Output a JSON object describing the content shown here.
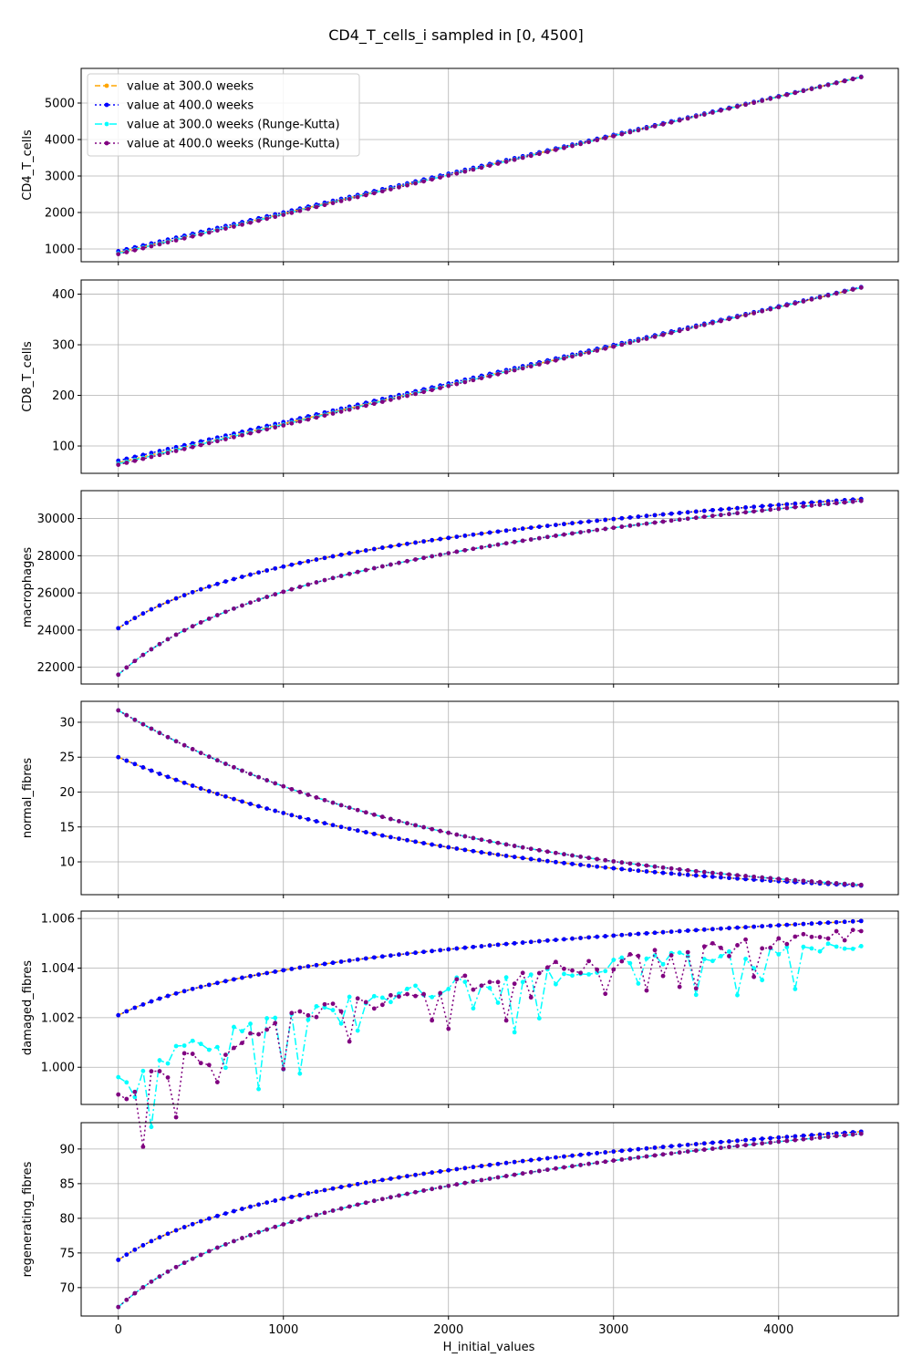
{
  "chart_data": {
    "type": "line",
    "title": "CD4_T_cells_i sampled in [0, 4500]",
    "xlabel": "H_initial_values",
    "xlim": [
      -225,
      4725
    ],
    "xticks": [
      0,
      1000,
      2000,
      3000,
      4000
    ],
    "x_range": [
      0,
      4500
    ],
    "n_points": 91,
    "grid": true,
    "legend": {
      "placement": "upper-left",
      "entries": [
        "value at 300.0 weeks",
        "value at 400.0 weeks",
        "value at 300.0 weeks (Runge-Kutta)",
        "value at 400.0 weeks (Runge-Kutta)"
      ]
    },
    "series_styles": [
      {
        "label": "value at 300.0 weeks",
        "color": "#ffa500",
        "dash": "6,3"
      },
      {
        "label": "value at 400.0 weeks",
        "color": "#0000ff",
        "dash": "2,3"
      },
      {
        "label": "value at 300.0 weeks (Runge-Kutta)",
        "color": "#00ffff",
        "dash": "8,3,2,3"
      },
      {
        "label": "value at 400.0 weeks (Runge-Kutta)",
        "color": "#800080",
        "dash": "2,3"
      }
    ],
    "panels": [
      {
        "ylabel": "CD4_T_cells",
        "ylim": [
          650,
          5950
        ],
        "yticks": [
          1000,
          2000,
          3000,
          4000,
          5000
        ],
        "series": [
          {
            "name": "value at 300.0 weeks",
            "start": 900,
            "end": 5720,
            "shape": "linear"
          },
          {
            "name": "value at 400.0 weeks",
            "start": 940,
            "end": 5720,
            "shape": "linear"
          },
          {
            "name": "value at 300.0 weeks (Runge-Kutta)",
            "start": 880,
            "end": 5710,
            "shape": "linear"
          },
          {
            "name": "value at 400.0 weeks (Runge-Kutta)",
            "start": 860,
            "end": 5710,
            "shape": "linear"
          }
        ]
      },
      {
        "ylabel": "CD8_T_cells",
        "ylim": [
          46,
          428
        ],
        "yticks": [
          100,
          200,
          300,
          400
        ],
        "series": [
          {
            "name": "value at 300.0 weeks",
            "start": 67,
            "end": 413,
            "shape": "linear"
          },
          {
            "name": "value at 400.0 weeks",
            "start": 71,
            "end": 414,
            "shape": "linear"
          },
          {
            "name": "value at 300.0 weeks (Runge-Kutta)",
            "start": 65,
            "end": 413,
            "shape": "linear"
          },
          {
            "name": "value at 400.0 weeks (Runge-Kutta)",
            "start": 63,
            "end": 413,
            "shape": "linear"
          }
        ]
      },
      {
        "ylabel": "macrophages",
        "ylim": [
          21100,
          31500
        ],
        "yticks": [
          22000,
          24000,
          26000,
          28000,
          30000
        ],
        "series": [
          {
            "name": "value at 300.0 weeks",
            "start": 24100,
            "end": 31050,
            "shape": "log"
          },
          {
            "name": "value at 400.0 weeks",
            "start": 24100,
            "end": 31050,
            "shape": "log"
          },
          {
            "name": "value at 300.0 weeks (Runge-Kutta)",
            "start": 21600,
            "end": 30950,
            "shape": "log"
          },
          {
            "name": "value at 400.0 weeks (Runge-Kutta)",
            "start": 21600,
            "end": 30950,
            "shape": "log"
          }
        ]
      },
      {
        "ylabel": "normal_fibres",
        "ylim": [
          5.3,
          33.0
        ],
        "yticks": [
          10,
          15,
          20,
          25,
          30
        ],
        "series": [
          {
            "name": "value at 300.0 weeks",
            "start": 25.0,
            "end": 6.6,
            "shape": "decay"
          },
          {
            "name": "value at 400.0 weeks",
            "start": 25.0,
            "end": 6.6,
            "shape": "decay"
          },
          {
            "name": "value at 300.0 weeks (Runge-Kutta)",
            "start": 31.7,
            "end": 6.7,
            "shape": "decay"
          },
          {
            "name": "value at 400.0 weeks (Runge-Kutta)",
            "start": 31.7,
            "end": 6.7,
            "shape": "decay"
          }
        ]
      },
      {
        "ylabel": "damaged_fibres",
        "ylim": [
          0.9985,
          1.0063
        ],
        "yticks": [
          1.0,
          1.002,
          1.004,
          1.006
        ],
        "ytick_labels": [
          "1.000",
          "1.002",
          "1.004",
          "1.006"
        ],
        "series": [
          {
            "name": "value at 300.0 weeks",
            "start": 1.0021,
            "end": 1.0059,
            "shape": "log"
          },
          {
            "name": "value at 400.0 weeks",
            "start": 1.0021,
            "end": 1.0059,
            "shape": "log"
          },
          {
            "name": "value at 300.0 weeks (Runge-Kutta)",
            "start": 0.9996,
            "end": 1.0053,
            "shape": "noisy",
            "seed": 7
          },
          {
            "name": "value at 400.0 weeks (Runge-Kutta)",
            "start": 0.9989,
            "end": 1.0056,
            "shape": "noisy",
            "seed": 13
          }
        ]
      },
      {
        "ylabel": "regenerating_fibres",
        "ylim": [
          65.9,
          93.8
        ],
        "yticks": [
          70,
          75,
          80,
          85,
          90
        ],
        "series": [
          {
            "name": "value at 300.0 weeks",
            "start": 74.0,
            "end": 92.5,
            "shape": "log"
          },
          {
            "name": "value at 400.0 weeks",
            "start": 74.0,
            "end": 92.5,
            "shape": "log"
          },
          {
            "name": "value at 300.0 weeks (Runge-Kutta)",
            "start": 67.2,
            "end": 92.2,
            "shape": "log"
          },
          {
            "name": "value at 400.0 weeks (Runge-Kutta)",
            "start": 67.2,
            "end": 92.2,
            "shape": "log"
          }
        ]
      }
    ]
  }
}
